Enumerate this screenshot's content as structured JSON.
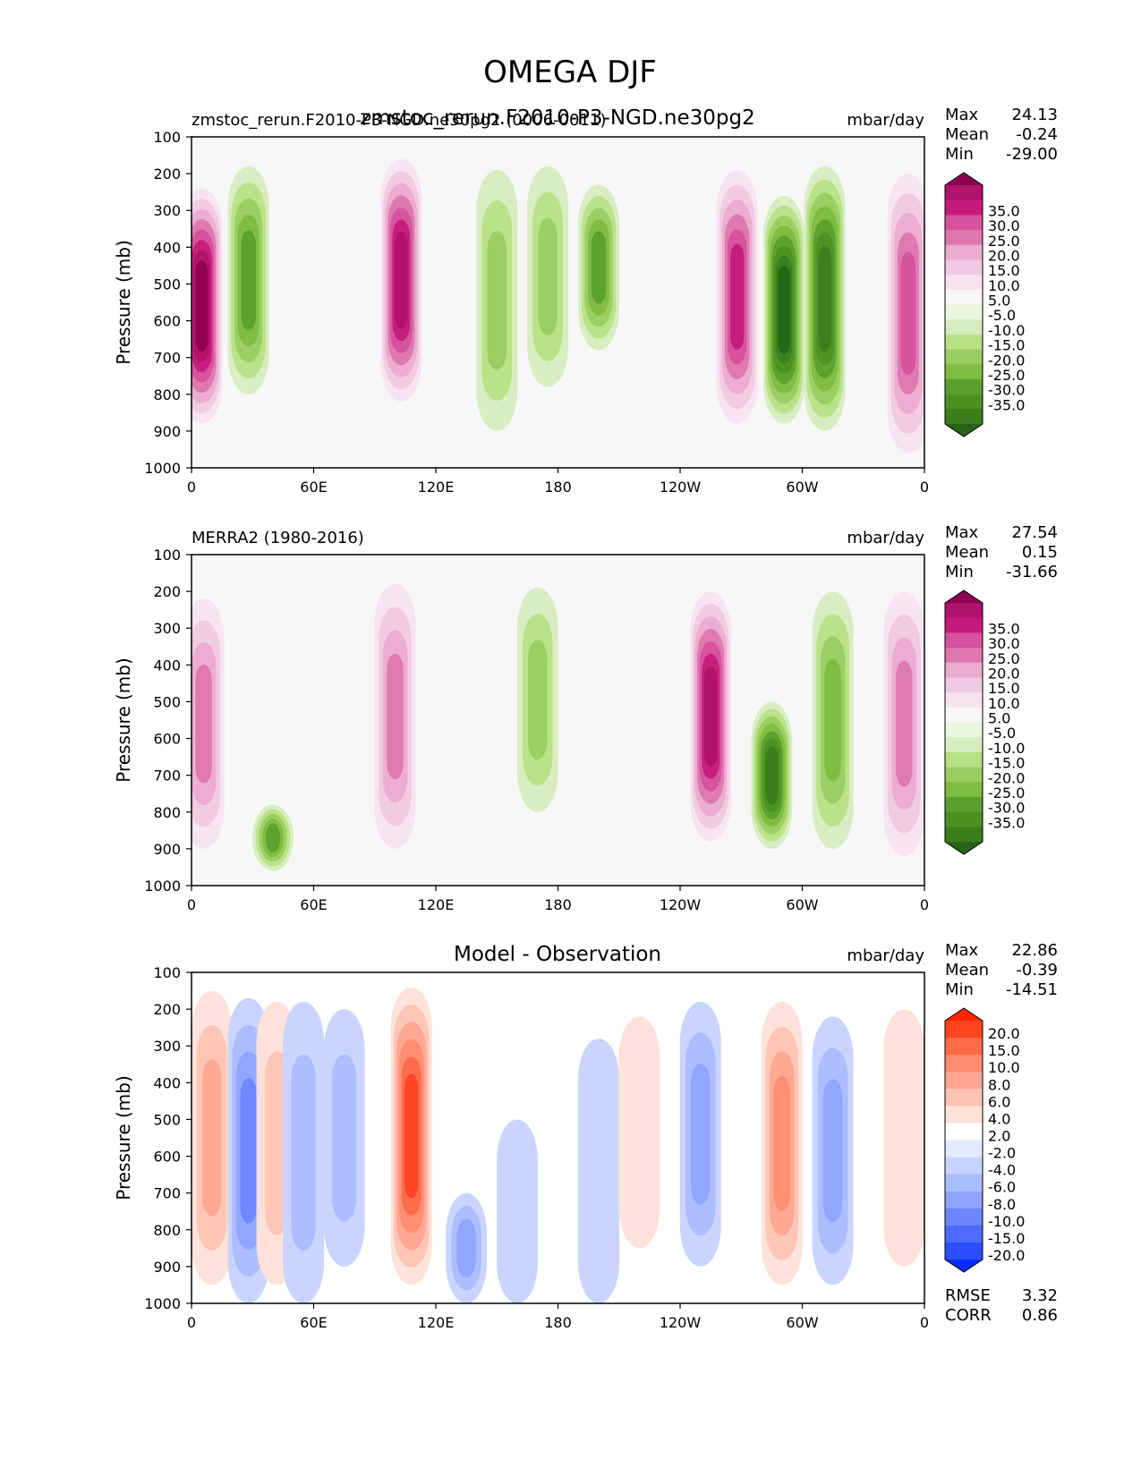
{
  "figure_title": "OMEGA DJF",
  "chart_data": [
    {
      "type": "heatmap",
      "kind": "contour-filled",
      "title_left": "zmstoc_rerun.F2010-P3-NGD.ne30pg2 (0006-0011)",
      "title_center_overlay": "zmstoc_rerun.F2010-P3-NGD.ne30pg2",
      "title_center": "",
      "units": "mbar/day",
      "ylabel": "Pressure (mb)",
      "xlim": [
        0,
        360
      ],
      "ylim": [
        1000,
        100
      ],
      "xticks": [
        "0",
        "60E",
        "120E",
        "180",
        "120W",
        "60W",
        "0"
      ],
      "yticks": [
        "100",
        "200",
        "300",
        "400",
        "500",
        "600",
        "700",
        "800",
        "900",
        "1000"
      ],
      "stats": {
        "Max": "24.13",
        "Mean": "-0.24",
        "Min": "-29.00"
      },
      "colorbar": {
        "labels": [
          "35.0",
          "30.0",
          "25.0",
          "20.0",
          "15.0",
          "10.0",
          "5.0",
          "-5.0",
          "-10.0",
          "-15.0",
          "-20.0",
          "-25.0",
          "-30.0",
          "-35.0"
        ],
        "colors": [
          "#8e0152",
          "#b0126e",
          "#c51b7d",
          "#d7519c",
          "#de77ae",
          "#ebabd0",
          "#f1c8e3",
          "#f7e3ef",
          "#f7f7f7",
          "#eaf5dd",
          "#d6ecbf",
          "#b8e186",
          "#9acd61",
          "#7fbc41",
          "#5aa02e",
          "#4d9221",
          "#3a7e1e",
          "#276419"
        ]
      },
      "features": [
        {
          "lon": 5,
          "p1": 240,
          "p2": 880,
          "v": 22
        },
        {
          "lon": 103,
          "p1": 160,
          "p2": 820,
          "v": 18
        },
        {
          "lon": 150,
          "p1": 190,
          "p2": 900,
          "v": -9
        },
        {
          "lon": 175,
          "p1": 180,
          "p2": 780,
          "v": -9
        },
        {
          "lon": 200,
          "p1": 230,
          "p2": 680,
          "v": -14
        },
        {
          "lon": 268,
          "p1": 190,
          "p2": 880,
          "v": 16
        },
        {
          "lon": 291,
          "p1": 260,
          "p2": 880,
          "v": -22
        },
        {
          "lon": 311,
          "p1": 180,
          "p2": 900,
          "v": -20
        },
        {
          "lon": 352,
          "p1": 200,
          "p2": 960,
          "v": 15
        },
        {
          "lon": 28,
          "p1": 180,
          "p2": 800,
          "v": -15
        }
      ]
    },
    {
      "type": "heatmap",
      "kind": "contour-filled",
      "title_left": "MERRA2 (1980-2016)",
      "title_center": "",
      "units": "mbar/day",
      "ylabel": "Pressure (mb)",
      "xlim": [
        0,
        360
      ],
      "ylim": [
        1000,
        100
      ],
      "xticks": [
        "0",
        "60E",
        "120E",
        "180",
        "120W",
        "60W",
        "0"
      ],
      "yticks": [
        "100",
        "200",
        "300",
        "400",
        "500",
        "600",
        "700",
        "800",
        "900",
        "1000"
      ],
      "stats": {
        "Max": "27.54",
        "Mean": "0.15",
        "Min": "-31.66"
      },
      "colorbar": {
        "labels": [
          "35.0",
          "30.0",
          "25.0",
          "20.0",
          "15.0",
          "10.0",
          "5.0",
          "-5.0",
          "-10.0",
          "-15.0",
          "-20.0",
          "-25.0",
          "-30.0",
          "-35.0"
        ],
        "colors": [
          "#8e0152",
          "#b0126e",
          "#c51b7d",
          "#d7519c",
          "#de77ae",
          "#ebabd0",
          "#f1c8e3",
          "#f7e3ef",
          "#f7f7f7",
          "#eaf5dd",
          "#d6ecbf",
          "#b8e186",
          "#9acd61",
          "#7fbc41",
          "#5aa02e",
          "#4d9221",
          "#3a7e1e",
          "#276419"
        ]
      },
      "features": [
        {
          "lon": 6,
          "p1": 220,
          "p2": 900,
          "v": 12
        },
        {
          "lon": 100,
          "p1": 180,
          "p2": 900,
          "v": 12
        },
        {
          "lon": 170,
          "p1": 190,
          "p2": 800,
          "v": -9
        },
        {
          "lon": 255,
          "p1": 200,
          "p2": 880,
          "v": 18
        },
        {
          "lon": 285,
          "p1": 500,
          "p2": 900,
          "v": -18
        },
        {
          "lon": 315,
          "p1": 200,
          "p2": 900,
          "v": -12
        },
        {
          "lon": 350,
          "p1": 200,
          "p2": 920,
          "v": 11
        },
        {
          "lon": 40,
          "p1": 780,
          "p2": 960,
          "v": -15
        }
      ]
    },
    {
      "type": "heatmap",
      "kind": "contour-filled",
      "title_left": "",
      "title_center": "Model - Observation",
      "units": "mbar/day",
      "ylabel": "Pressure (mb)",
      "xlim": [
        0,
        360
      ],
      "ylim": [
        1000,
        100
      ],
      "xticks": [
        "0",
        "60E",
        "120E",
        "180",
        "120W",
        "60W",
        "0"
      ],
      "yticks": [
        "100",
        "200",
        "300",
        "400",
        "500",
        "600",
        "700",
        "800",
        "900",
        "1000"
      ],
      "stats": {
        "Max": "22.86",
        "Mean": "-0.39",
        "Min": "-14.51"
      },
      "rmse": "3.32",
      "corr": "0.86",
      "colorbar": {
        "labels": [
          "20.0",
          "15.0",
          "10.0",
          "8.0",
          "6.0",
          "4.0",
          "2.0",
          "-2.0",
          "-4.0",
          "-6.0",
          "-8.0",
          "-10.0",
          "-15.0",
          "-20.0"
        ],
        "colors": [
          "#ff2600",
          "#ff4422",
          "#ff6a48",
          "#ff8c70",
          "#ffa692",
          "#ffc4b4",
          "#ffe2d8",
          "#ffffff",
          "#e3e9ff",
          "#c7d3ff",
          "#aabdff",
          "#8fa4ff",
          "#6f86ff",
          "#4d6bff",
          "#2b4eff",
          "#0a2cff"
        ]
      },
      "features": [
        {
          "lon": 10,
          "p1": 150,
          "p2": 950,
          "v": 10
        },
        {
          "lon": 28,
          "p1": 170,
          "p2": 1000,
          "v": -12
        },
        {
          "lon": 42,
          "p1": 180,
          "p2": 950,
          "v": 6
        },
        {
          "lon": 55,
          "p1": 180,
          "p2": 1000,
          "v": -6
        },
        {
          "lon": 75,
          "p1": 200,
          "p2": 900,
          "v": -5
        },
        {
          "lon": 108,
          "p1": 140,
          "p2": 950,
          "v": 18
        },
        {
          "lon": 135,
          "p1": 700,
          "p2": 1000,
          "v": -9
        },
        {
          "lon": 160,
          "p1": 500,
          "p2": 1000,
          "v": -4
        },
        {
          "lon": 200,
          "p1": 280,
          "p2": 1000,
          "v": -4
        },
        {
          "lon": 220,
          "p1": 220,
          "p2": 850,
          "v": 4
        },
        {
          "lon": 250,
          "p1": 180,
          "p2": 900,
          "v": -8
        },
        {
          "lon": 290,
          "p1": 180,
          "p2": 950,
          "v": 14
        },
        {
          "lon": 315,
          "p1": 220,
          "p2": 950,
          "v": -8
        },
        {
          "lon": 350,
          "p1": 200,
          "p2": 900,
          "v": 3
        }
      ]
    }
  ]
}
